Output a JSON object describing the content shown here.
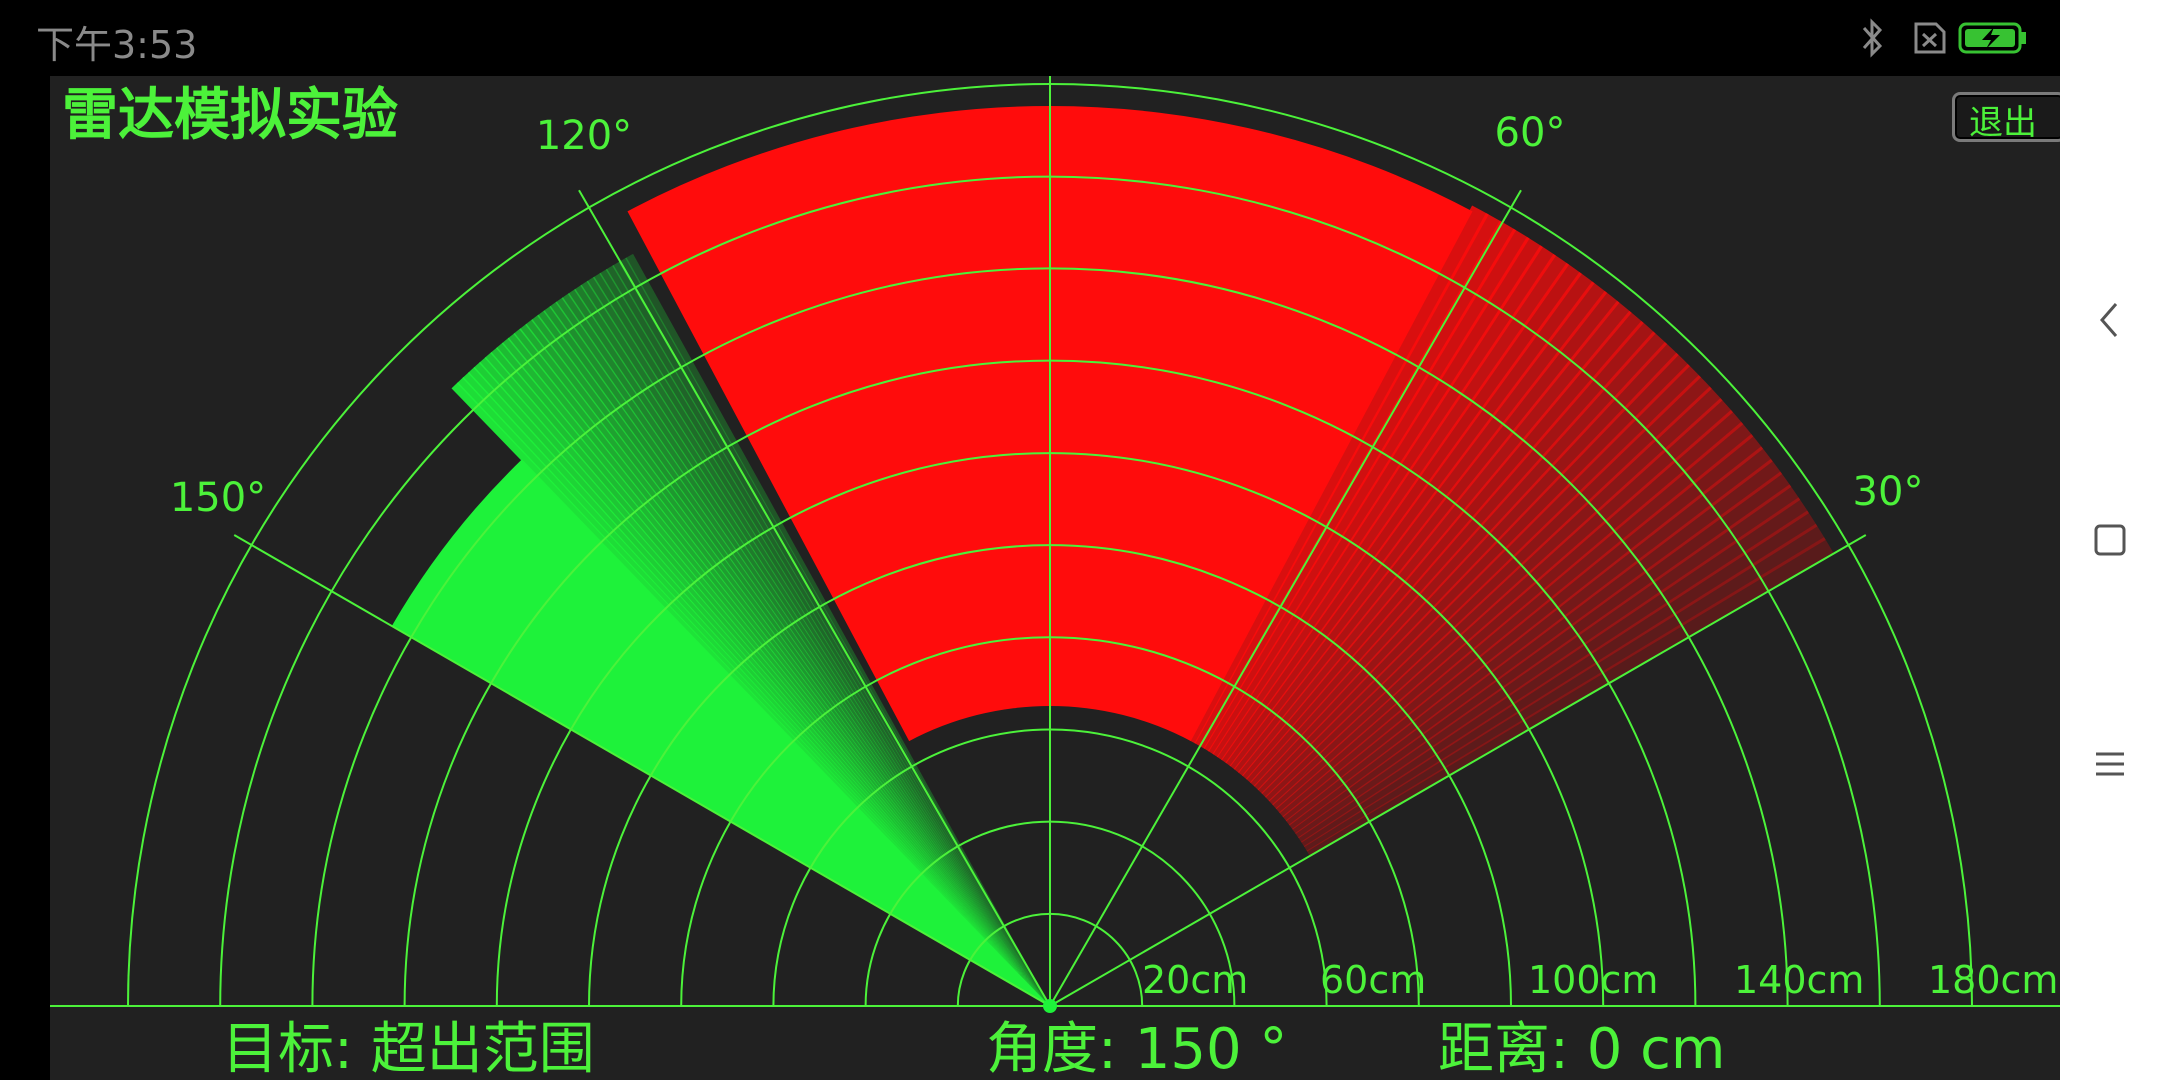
{
  "status_bar": {
    "time": "下午3:53",
    "icons": [
      "bluetooth-icon",
      "sim-disabled-icon",
      "battery-charging-icon"
    ]
  },
  "app": {
    "title": "雷达模拟实验",
    "exit_label": "退出"
  },
  "radar": {
    "angle_labels": [
      "150°",
      "120°",
      "60°",
      "30°"
    ],
    "distance_labels": [
      "20cm",
      "60cm",
      "100cm",
      "140cm",
      "180cm"
    ],
    "colors": {
      "background": "#212121",
      "grid": "#4cf23a",
      "sweep": "#1ef23a",
      "detected": "#ff0c0c"
    },
    "sweep_angle_deg": 150,
    "max_range_cm": 200
  },
  "readouts": {
    "target_label": "目标:",
    "target_value": "超出范围",
    "angle_label": "角度:",
    "angle_value": "150 °",
    "distance_label": "距离:",
    "distance_value": "0 cm"
  },
  "nav_bar": {
    "buttons": [
      "back-icon",
      "home-icon",
      "menu-icon"
    ]
  }
}
